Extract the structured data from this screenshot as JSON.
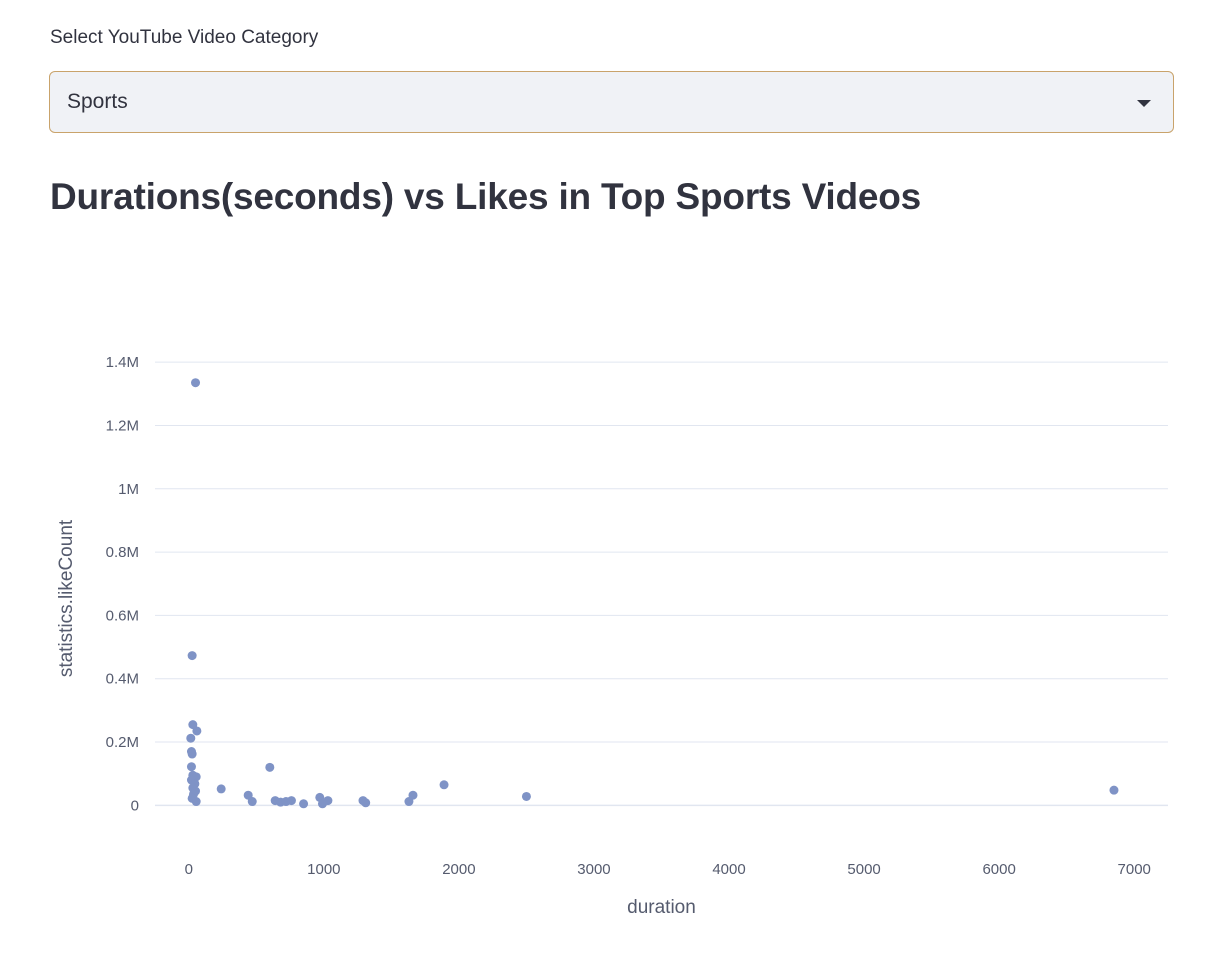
{
  "select": {
    "label": "Select YouTube Video Category",
    "value": "Sports"
  },
  "page": {
    "title": "Durations(seconds) vs Likes in Top Sports Videos"
  },
  "colors": {
    "marker": "#7f93c6",
    "grid": "#e1e6f0",
    "accent_border": "#c9a36b"
  },
  "icons": {
    "select_caret": "chevron-down-icon"
  },
  "chart_data": {
    "type": "scatter",
    "title": "",
    "xlabel": "duration",
    "ylabel": "statistics.likeCount",
    "xlim": [
      -250,
      7250
    ],
    "ylim": [
      -100000,
      1470000
    ],
    "x_ticks": [
      0,
      1000,
      2000,
      3000,
      4000,
      5000,
      6000,
      7000
    ],
    "x_tick_labels": [
      "0",
      "1000",
      "2000",
      "3000",
      "4000",
      "5000",
      "6000",
      "7000"
    ],
    "y_ticks": [
      0,
      200000,
      400000,
      600000,
      800000,
      1000000,
      1200000,
      1400000
    ],
    "y_tick_labels": [
      "0",
      "0.2M",
      "0.4M",
      "0.6M",
      "0.8M",
      "1M",
      "1.2M",
      "1.4M"
    ],
    "grid": true,
    "points": [
      {
        "x": 50,
        "y": 1335000
      },
      {
        "x": 25,
        "y": 473000
      },
      {
        "x": 30,
        "y": 255000
      },
      {
        "x": 60,
        "y": 235000
      },
      {
        "x": 15,
        "y": 212000
      },
      {
        "x": 20,
        "y": 170000
      },
      {
        "x": 25,
        "y": 162000
      },
      {
        "x": 20,
        "y": 122000
      },
      {
        "x": 30,
        "y": 95000
      },
      {
        "x": 55,
        "y": 90000
      },
      {
        "x": 20,
        "y": 80000
      },
      {
        "x": 45,
        "y": 68000
      },
      {
        "x": 30,
        "y": 55000
      },
      {
        "x": 50,
        "y": 45000
      },
      {
        "x": 35,
        "y": 35000
      },
      {
        "x": 25,
        "y": 22000
      },
      {
        "x": 55,
        "y": 12000
      },
      {
        "x": 240,
        "y": 52000
      },
      {
        "x": 440,
        "y": 32000
      },
      {
        "x": 470,
        "y": 12000
      },
      {
        "x": 600,
        "y": 120000
      },
      {
        "x": 640,
        "y": 15000
      },
      {
        "x": 680,
        "y": 10000
      },
      {
        "x": 720,
        "y": 12000
      },
      {
        "x": 760,
        "y": 15000
      },
      {
        "x": 850,
        "y": 5000
      },
      {
        "x": 970,
        "y": 25000
      },
      {
        "x": 990,
        "y": 5000
      },
      {
        "x": 1030,
        "y": 15000
      },
      {
        "x": 1290,
        "y": 15000
      },
      {
        "x": 1310,
        "y": 8000
      },
      {
        "x": 1630,
        "y": 12000
      },
      {
        "x": 1660,
        "y": 32000
      },
      {
        "x": 1890,
        "y": 65000
      },
      {
        "x": 2500,
        "y": 28000
      },
      {
        "x": 6850,
        "y": 48000
      }
    ]
  }
}
